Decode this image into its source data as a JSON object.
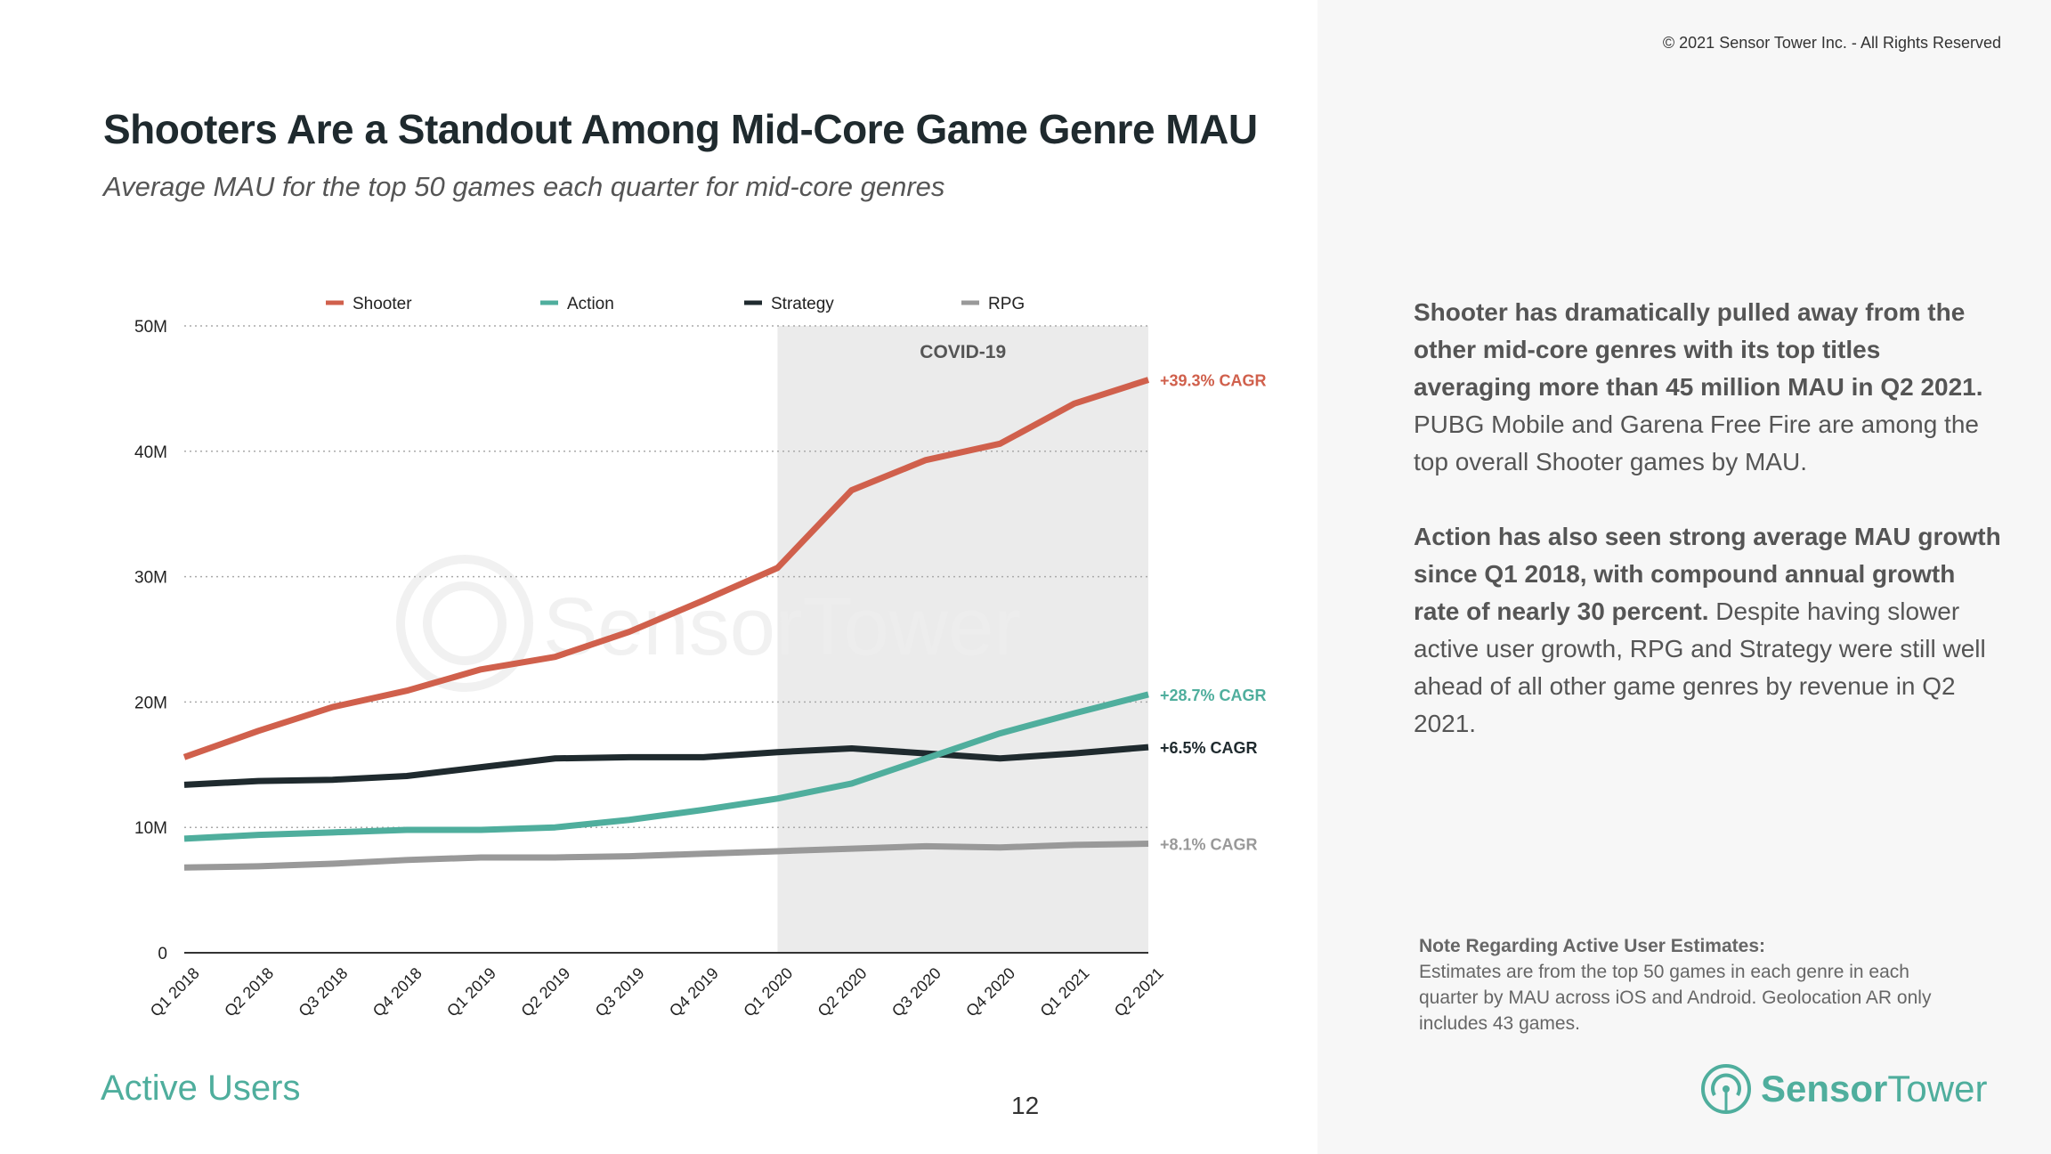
{
  "header": {
    "copyright": "© 2021 Sensor Tower Inc. - All Rights Reserved",
    "title": "Shooters Are a Standout Among Mid-Core Game Genre MAU",
    "subtitle": "Average MAU for the top 50 games each quarter for mid-core genres"
  },
  "insight": {
    "p1_bold": "Shooter has dramatically pulled away from the other mid-core genres with its top titles averaging more than 45 million MAU in Q2 2021.",
    "p1_rest": " PUBG Mobile and Garena Free Fire are among the top overall Shooter games by MAU.",
    "p2_bold": "Action has also seen strong average MAU growth since Q1 2018, with compound annual growth rate of nearly 30 percent.",
    "p2_rest": " Despite having slower active user growth, RPG and Strategy were still well ahead of all other game genres by revenue in Q2 2021."
  },
  "note": {
    "heading": "Note Regarding Active User Estimates:",
    "body": "Estimates are from the top 50 games in each genre in each quarter by MAU across iOS and Android. Geolocation AR only includes 43 games."
  },
  "footer": {
    "section": "Active Users",
    "page": "12",
    "logo_bold": "Sensor",
    "logo_light": "Tower"
  },
  "watermark": "SensorTower",
  "chart_data": {
    "type": "line",
    "categories": [
      "Q1 2018",
      "Q2 2018",
      "Q3 2018",
      "Q4 2018",
      "Q1 2019",
      "Q2 2019",
      "Q3 2019",
      "Q4 2019",
      "Q1 2020",
      "Q2 2020",
      "Q3 2020",
      "Q4 2020",
      "Q1 2021",
      "Q2 2021"
    ],
    "ylim": [
      0,
      50
    ],
    "yticks": [
      {
        "v": 0,
        "label": "0"
      },
      {
        "v": 10,
        "label": "10M"
      },
      {
        "v": 20,
        "label": "20M"
      },
      {
        "v": 30,
        "label": "30M"
      },
      {
        "v": 40,
        "label": "40M"
      },
      {
        "v": 50,
        "label": "50M"
      }
    ],
    "grid": true,
    "legend": "top",
    "annotation": {
      "label": "COVID-19",
      "from": "Q1 2020",
      "to": "Q2 2021"
    },
    "series": [
      {
        "name": "Shooter",
        "color": "#d0604c",
        "cagr": "+39.3% CAGR",
        "values": [
          15.6,
          17.7,
          19.6,
          20.9,
          22.6,
          23.6,
          25.6,
          28.1,
          30.7,
          36.9,
          39.3,
          40.6,
          43.8,
          45.7
        ]
      },
      {
        "name": "Action",
        "color": "#4fae9d",
        "cagr": "+28.7% CAGR",
        "values": [
          9.1,
          9.4,
          9.6,
          9.8,
          9.8,
          10.0,
          10.6,
          11.4,
          12.3,
          13.5,
          15.5,
          17.5,
          19.1,
          20.6
        ]
      },
      {
        "name": "Strategy",
        "color": "#1f2a2e",
        "cagr": "+6.5% CAGR",
        "values": [
          13.4,
          13.7,
          13.8,
          14.1,
          14.8,
          15.5,
          15.6,
          15.6,
          16.0,
          16.3,
          15.9,
          15.5,
          15.9,
          16.4
        ]
      },
      {
        "name": "RPG",
        "color": "#999999",
        "cagr": "+8.1% CAGR",
        "values": [
          6.8,
          6.9,
          7.1,
          7.4,
          7.6,
          7.6,
          7.7,
          7.9,
          8.1,
          8.3,
          8.5,
          8.4,
          8.6,
          8.7
        ]
      }
    ]
  }
}
